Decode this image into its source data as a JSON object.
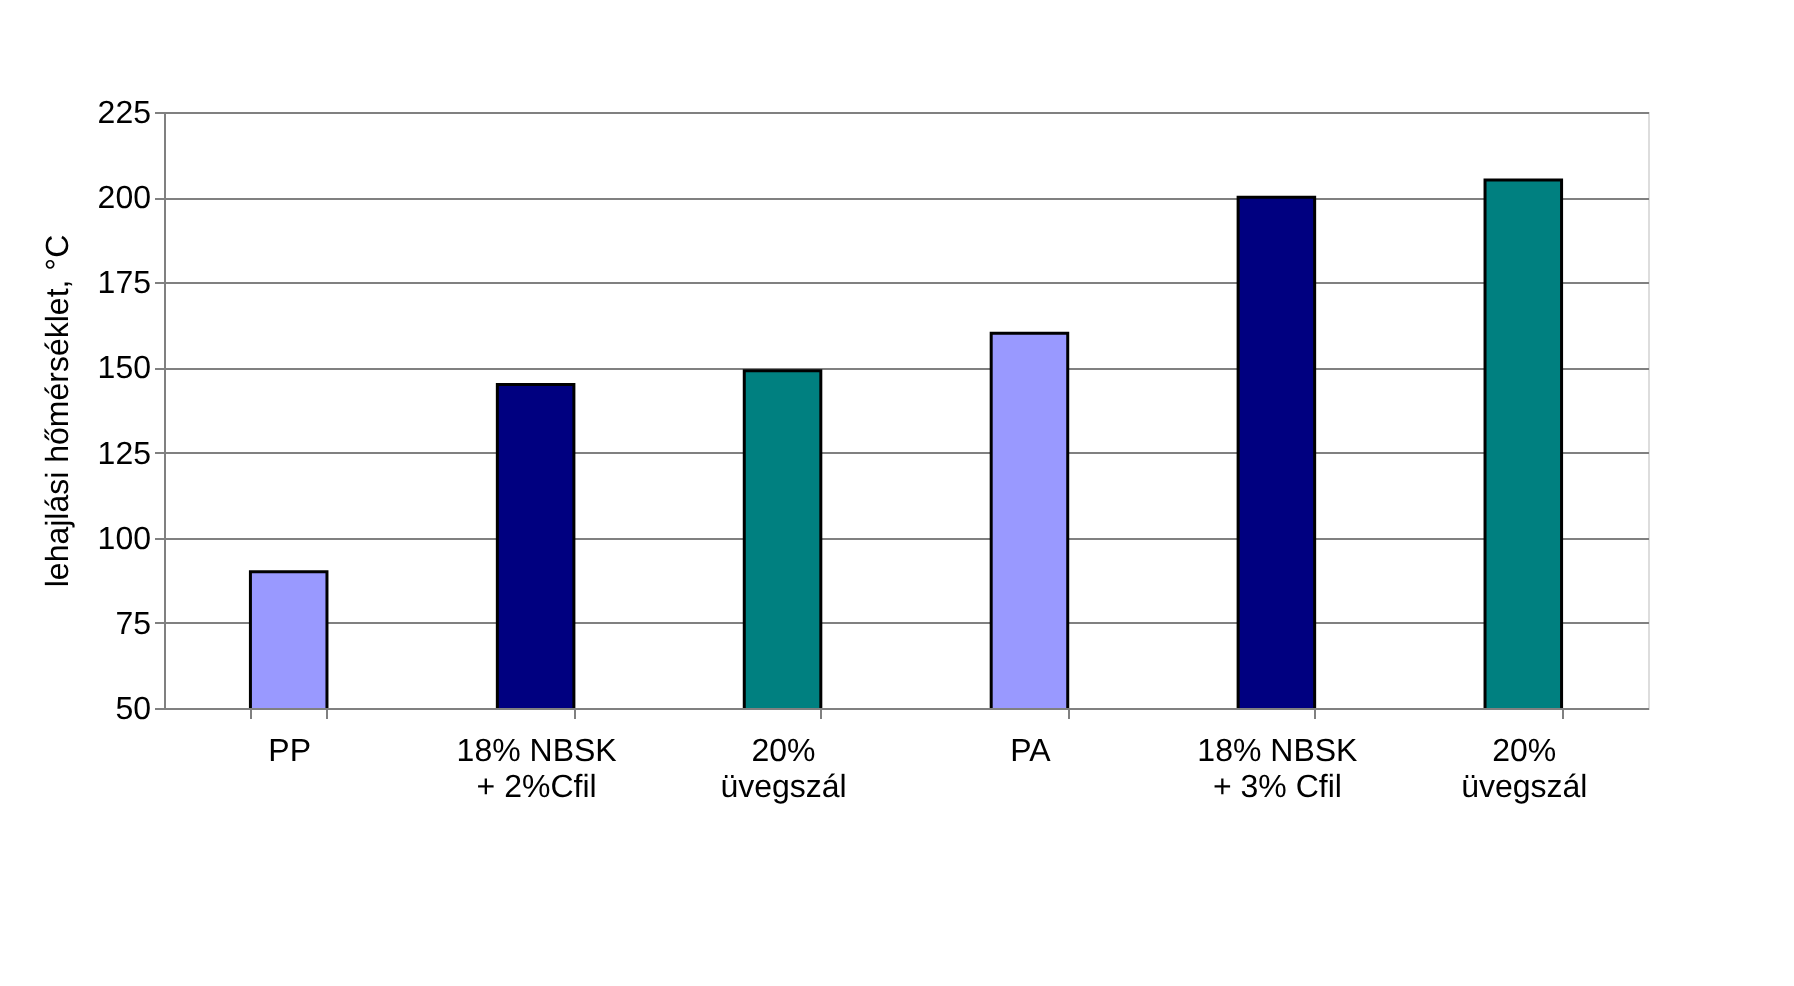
{
  "chart_data": {
    "type": "bar",
    "ylabel": "lehajlási hőmérséklet, °C",
    "categories": [
      "PP",
      "18% NBSK\n+ 2%Cfil",
      "20%\nüvegszál",
      "PA",
      "18% NBSK\n+ 3% Cfil",
      "20%\nüvegszál"
    ],
    "values": [
      90,
      145,
      149,
      160,
      200,
      205
    ],
    "colors": [
      "#9999ff",
      "#000080",
      "#008080",
      "#9999ff",
      "#000080",
      "#008080"
    ],
    "ylim": [
      50,
      225
    ],
    "yticks": [
      50,
      75,
      100,
      125,
      150,
      175,
      200,
      225
    ],
    "grid": "y"
  }
}
